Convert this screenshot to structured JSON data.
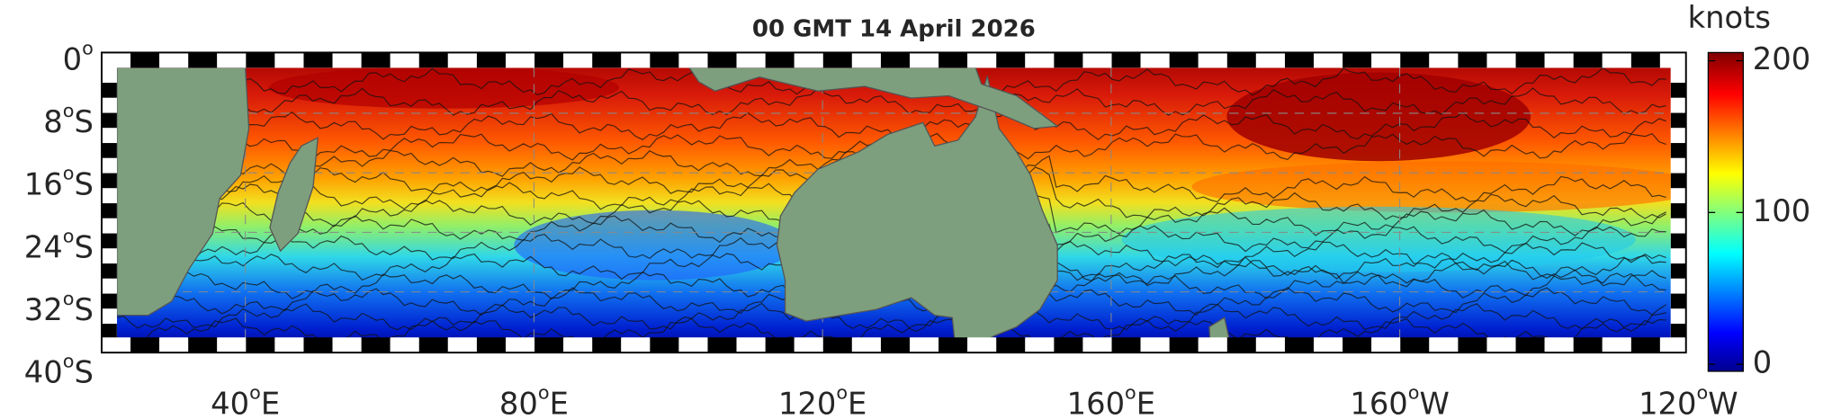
{
  "title": "00 GMT 14 April 2026",
  "colorbar": {
    "label": "knots",
    "range": [
      0,
      200
    ],
    "ticks": [
      0,
      100,
      200
    ]
  },
  "lat_labels": [
    {
      "number": "0",
      "degree": "o"
    },
    {
      "number": "8",
      "degree": "o",
      "hemisphere": "S"
    },
    {
      "number": "16",
      "degree": "o",
      "hemisphere": "S"
    },
    {
      "number": "24",
      "degree": "o",
      "hemisphere": "S"
    },
    {
      "number": "32",
      "degree": "o",
      "hemisphere": "S"
    },
    {
      "number": "40",
      "degree": "o",
      "hemisphere": "S"
    }
  ],
  "lon_labels": [
    {
      "number": "40",
      "degree": "o",
      "hemisphere": "E"
    },
    {
      "number": "80",
      "degree": "o",
      "hemisphere": "E"
    },
    {
      "number": "120",
      "degree": "o",
      "hemisphere": "E"
    },
    {
      "number": "160",
      "degree": "o",
      "hemisphere": "E"
    },
    {
      "number": "160",
      "degree": "o",
      "hemisphere": "W"
    },
    {
      "number": "120",
      "degree": "o",
      "hemisphere": "W"
    }
  ]
}
